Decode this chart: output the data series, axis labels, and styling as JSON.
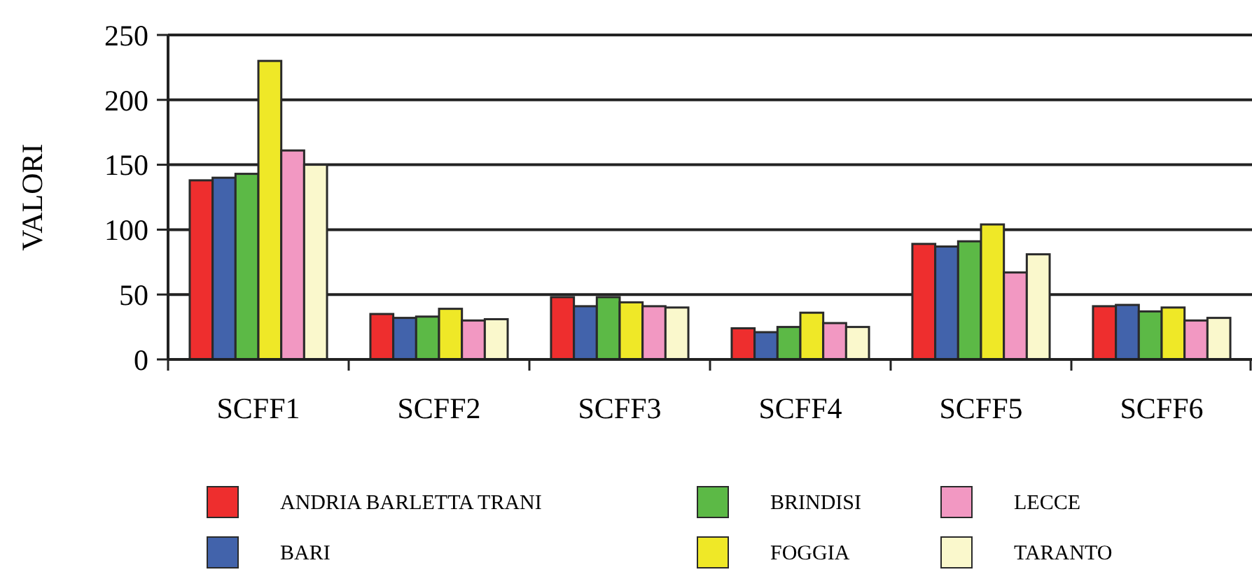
{
  "chart_data": {
    "type": "bar",
    "ylabel": "VALORI",
    "categories": [
      "SCFF1",
      "SCFF2",
      "SCFF3",
      "SCFF4",
      "SCFF5",
      "SCFF6"
    ],
    "series": [
      {
        "name": "ANDRIA BARLETTA TRANI",
        "color": "#ee2e2e",
        "values": [
          138,
          35,
          48,
          24,
          89,
          41
        ]
      },
      {
        "name": "BARI",
        "color": "#4263ab",
        "values": [
          140,
          32,
          41,
          21,
          87,
          42
        ]
      },
      {
        "name": "BRINDISI",
        "color": "#5cb946",
        "values": [
          143,
          33,
          48,
          25,
          91,
          37
        ]
      },
      {
        "name": "FOGGIA",
        "color": "#efe827",
        "values": [
          230,
          39,
          44,
          36,
          104,
          40
        ]
      },
      {
        "name": "LECCE",
        "color": "#f298c2",
        "values": [
          161,
          30,
          41,
          28,
          67,
          30
        ]
      },
      {
        "name": "TARANTO",
        "color": "#faf8cc",
        "values": [
          150,
          31,
          40,
          25,
          81,
          32
        ]
      }
    ],
    "ylim": [
      0,
      250
    ],
    "yticks": [
      0,
      50,
      100,
      150,
      200,
      250
    ],
    "grid": "y",
    "legend": "bottom"
  }
}
